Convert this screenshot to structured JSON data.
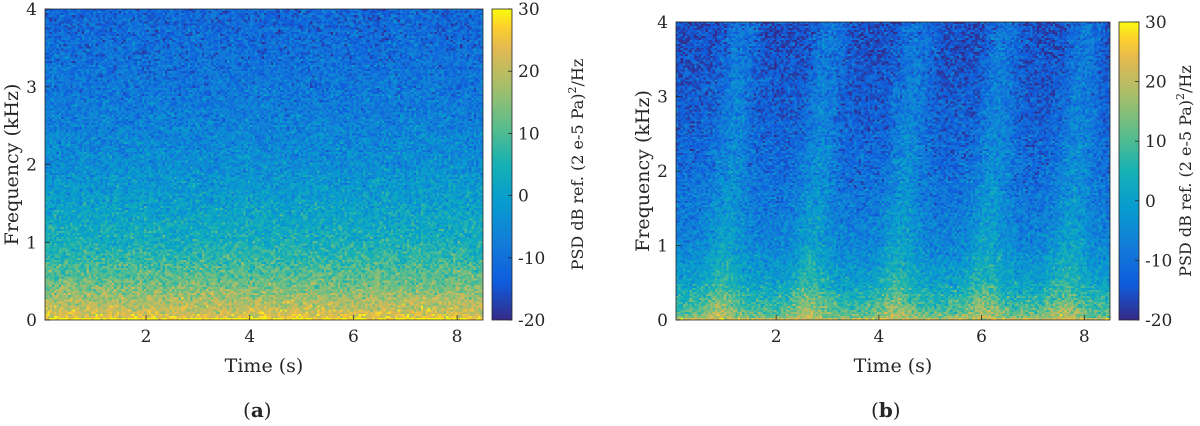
{
  "chart_data": [
    {
      "type": "heatmap",
      "panel_label": "a",
      "xlabel": "Time (s)",
      "ylabel": "Frequency (kHz)",
      "xlim": [
        0.05,
        8.5
      ],
      "ylim": [
        0,
        4
      ],
      "xticks": [
        "2",
        "4",
        "6",
        "8"
      ],
      "yticks": [
        "0",
        "1",
        "2",
        "3",
        "4"
      ],
      "colorbar": {
        "label_prefix": "PSD",
        "label_main": "dB ref. (2 e-5 Pa)",
        "label_sup": "2",
        "label_suffix": "/Hz",
        "clim": [
          -20,
          30
        ],
        "ticks": [
          "-20",
          "-10",
          "0",
          "10",
          "20",
          "30"
        ],
        "colormap": "parula"
      },
      "pattern": "broadband",
      "level_profile_db": [
        {
          "freq_khz": 0.0,
          "db": 24
        },
        {
          "freq_khz": 0.25,
          "db": 18
        },
        {
          "freq_khz": 0.5,
          "db": 12
        },
        {
          "freq_khz": 1.0,
          "db": 4
        },
        {
          "freq_khz": 2.0,
          "db": -4
        },
        {
          "freq_khz": 3.0,
          "db": -9
        },
        {
          "freq_khz": 4.0,
          "db": -12
        }
      ]
    },
    {
      "type": "heatmap",
      "panel_label": "b",
      "xlabel": "Time (s)",
      "ylabel": "Frequency (kHz)",
      "xlim": [
        0.05,
        8.5
      ],
      "ylim": [
        0,
        4
      ],
      "xticks": [
        "2",
        "4",
        "6",
        "8"
      ],
      "yticks": [
        "0",
        "1",
        "2",
        "3",
        "4"
      ],
      "colorbar": {
        "label_prefix": "PSD",
        "label_main": "dB ref. (2 e-5 Pa)",
        "label_sup": "2",
        "label_suffix": "/Hz",
        "clim": [
          -20,
          30
        ],
        "ticks": [
          "-20",
          "-10",
          "0",
          "10",
          "20",
          "30"
        ],
        "colormap": "parula"
      },
      "pattern": "periodic-sweeps",
      "sweep_times_s": [
        0.9,
        2.6,
        4.3,
        6.0,
        7.6
      ],
      "level_profile_db": [
        {
          "freq_khz": 0.0,
          "db": 14
        },
        {
          "freq_khz": 0.25,
          "db": 6
        },
        {
          "freq_khz": 0.5,
          "db": 0
        },
        {
          "freq_khz": 1.0,
          "db": -6
        },
        {
          "freq_khz": 2.0,
          "db": -11
        },
        {
          "freq_khz": 3.0,
          "db": -14
        },
        {
          "freq_khz": 4.0,
          "db": -16
        }
      ]
    }
  ]
}
